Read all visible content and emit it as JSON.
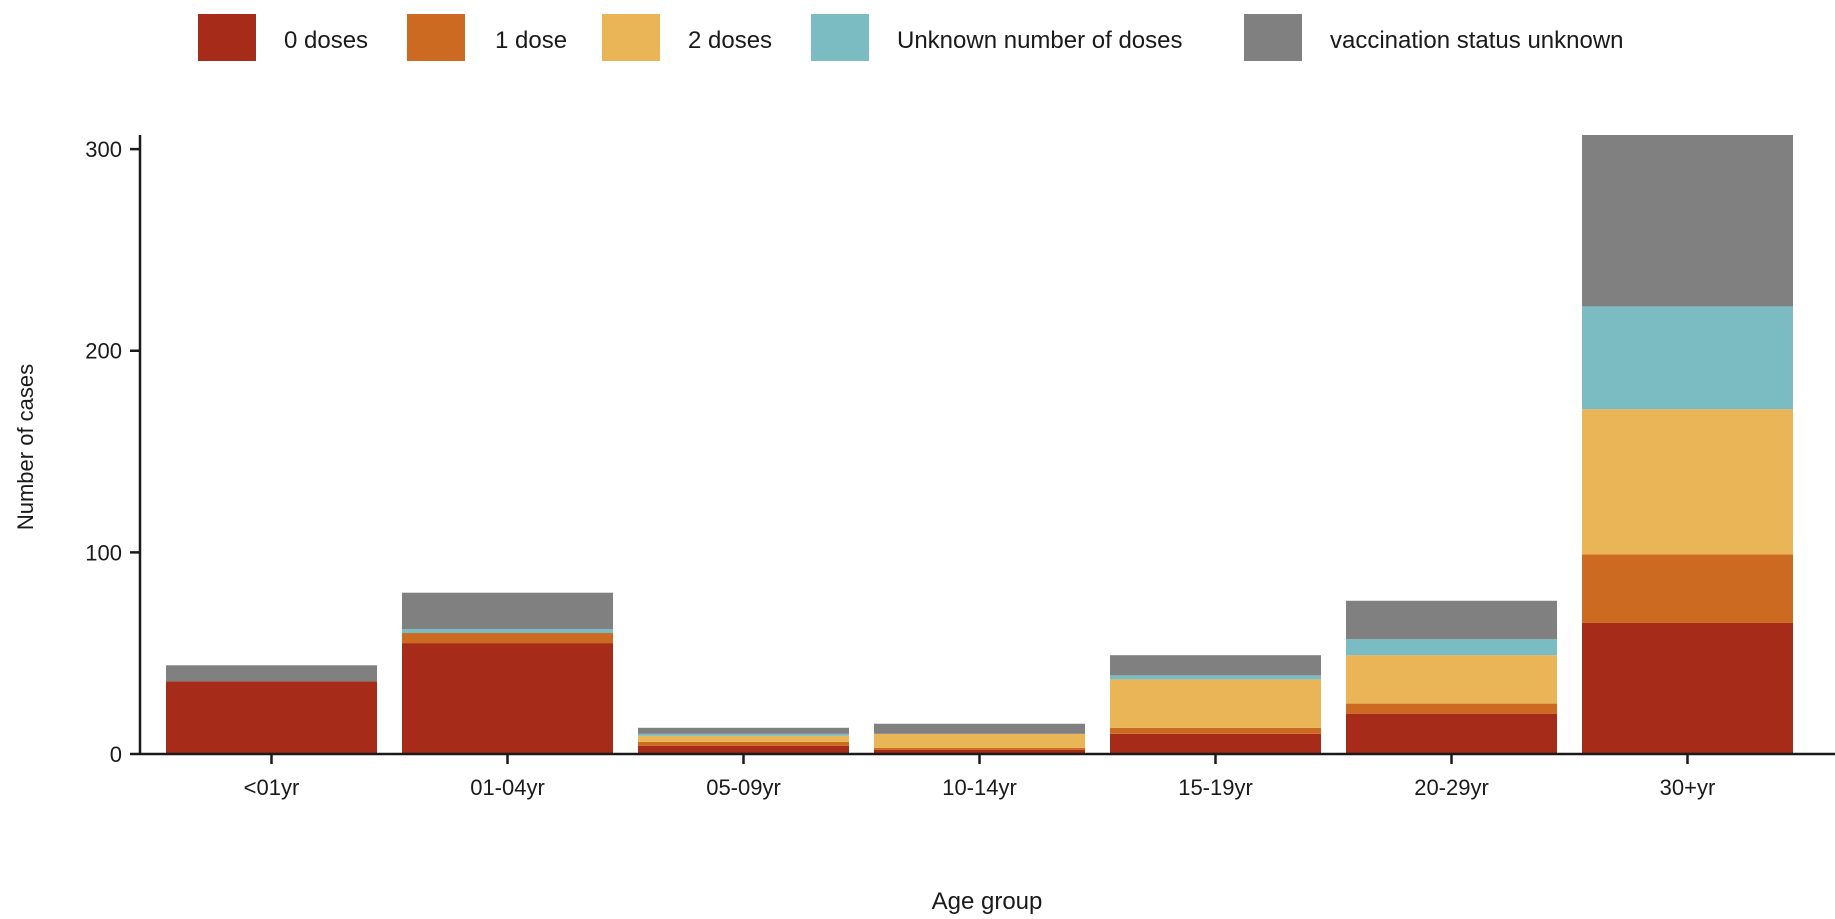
{
  "chart_data": {
    "type": "bar",
    "stacked": true,
    "title": "",
    "xlabel": "Age group",
    "ylabel": "Number of cases",
    "ylim": [
      0,
      307
    ],
    "yticks": [
      0,
      100,
      200,
      300
    ],
    "grid": false,
    "legend_position": "top",
    "categories": [
      "<01yr",
      "01-04yr",
      "05-09yr",
      "10-14yr",
      "15-19yr",
      "20-29yr",
      "30+yr"
    ],
    "series": [
      {
        "name": "0 doses",
        "color": "#A62B19",
        "values": [
          36,
          55,
          4,
          2,
          10,
          20,
          65
        ]
      },
      {
        "name": "1 dose",
        "color": "#CD6A22",
        "values": [
          0,
          5,
          2,
          1,
          3,
          5,
          34
        ]
      },
      {
        "name": "2 doses",
        "color": "#E9B556",
        "values": [
          0,
          0,
          3,
          7,
          24,
          24,
          72
        ]
      },
      {
        "name": "Unknown number of doses",
        "color": "#7BBBC2",
        "values": [
          0,
          2,
          1,
          0,
          2,
          8,
          51
        ]
      },
      {
        "name": "vaccination status unknown",
        "color": "#808080",
        "values": [
          8,
          18,
          3,
          5,
          10,
          19,
          85
        ]
      }
    ]
  }
}
